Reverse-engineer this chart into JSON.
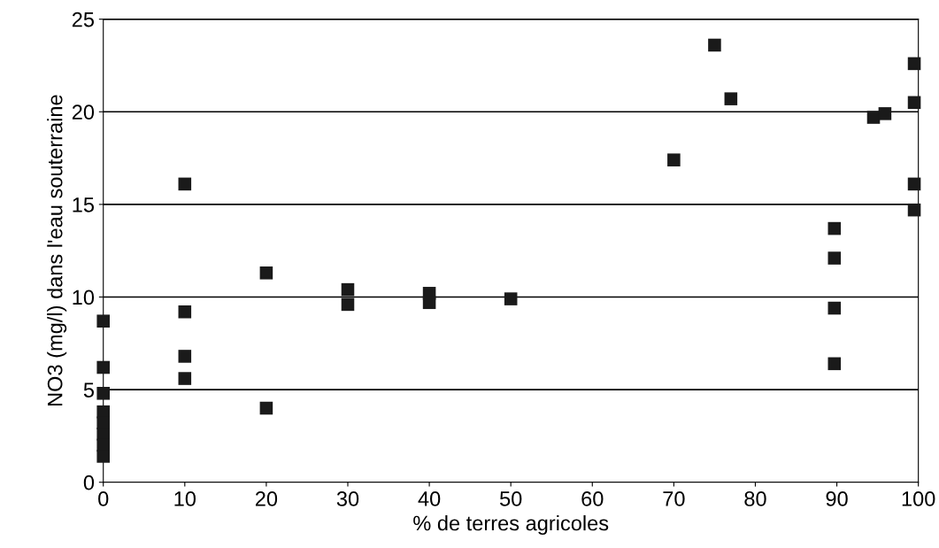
{
  "chart_data": {
    "type": "scatter",
    "xlabel": "% de terres agricoles",
    "ylabel": "NO3 (mg/l) dans l'eau souterraine",
    "x": [
      0,
      0,
      0,
      0,
      0,
      0,
      0,
      0,
      10,
      10,
      10,
      10,
      20,
      20,
      30,
      30,
      40,
      40,
      50,
      70,
      75,
      77,
      89.7,
      89.7,
      89.7,
      89.7,
      94.5,
      95.9,
      99.5,
      99.5,
      99.5,
      99.5
    ],
    "series": [
      {
        "color": "#1a1a1a",
        "values": [
          8.7,
          6.2,
          4.8,
          3.8,
          3.2,
          2.6,
          2.0,
          1.4,
          16.1,
          9.2,
          6.8,
          5.6,
          11.3,
          4.0,
          10.4,
          9.6,
          10.2,
          9.7,
          9.9,
          17.4,
          23.6,
          20.7,
          13.7,
          12.1,
          9.4,
          6.4,
          19.7,
          19.9,
          22.6,
          20.5,
          16.1,
          14.7
        ]
      }
    ],
    "marker": "square",
    "grid": "y",
    "xlim": [
      0,
      100
    ],
    "ylim": [
      0,
      25
    ],
    "xticks": [
      0,
      10,
      20,
      30,
      40,
      50,
      60,
      70,
      80,
      90,
      100
    ],
    "yticks": [
      0,
      5,
      10,
      15,
      20,
      25
    ]
  }
}
